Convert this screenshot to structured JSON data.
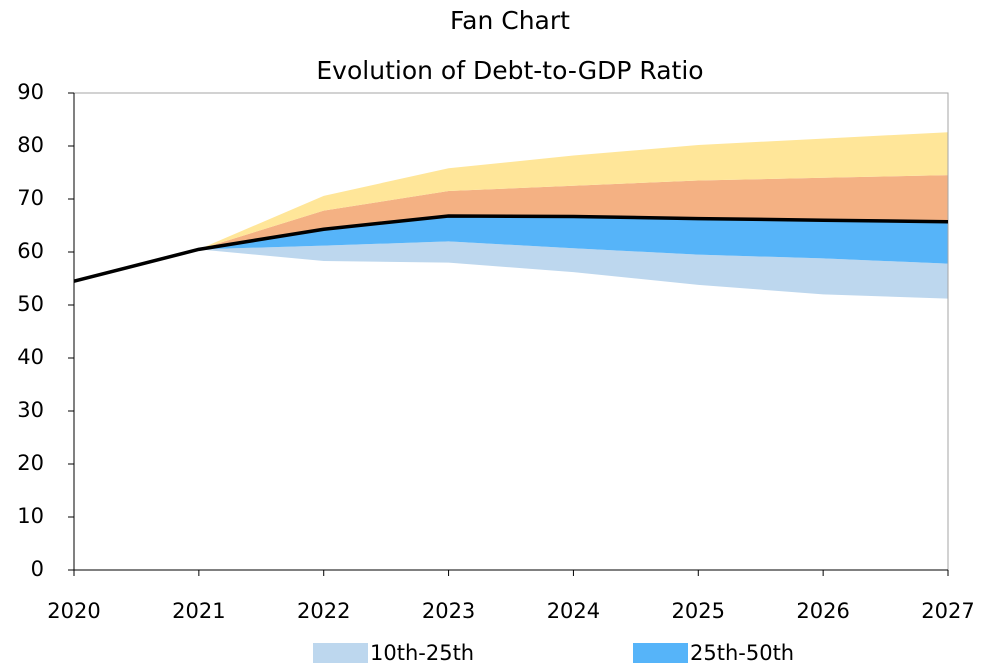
{
  "chart_data": {
    "type": "fan",
    "title": "Fan Chart",
    "subtitle": "Evolution of Debt-to-GDP Ratio",
    "x": [
      2020,
      2021,
      2022,
      2023,
      2024,
      2025,
      2026,
      2027
    ],
    "xlim": [
      2020,
      2027
    ],
    "xticks": [
      2020,
      2021,
      2022,
      2023,
      2024,
      2025,
      2026,
      2027
    ],
    "ylim": [
      0,
      90
    ],
    "yticks": [
      0,
      10,
      20,
      30,
      40,
      50,
      60,
      70,
      80,
      90
    ],
    "percentiles": {
      "p10": [
        null,
        60.5,
        58.3,
        58.0,
        56.2,
        53.8,
        52.0,
        51.2
      ],
      "p25": [
        null,
        60.5,
        61.2,
        62.0,
        60.7,
        59.5,
        58.8,
        57.8
      ],
      "p50": [
        null,
        60.5,
        64.3,
        66.8,
        66.7,
        66.3,
        66.0,
        65.7
      ],
      "p75": [
        null,
        60.5,
        67.8,
        71.5,
        72.5,
        73.5,
        74.0,
        74.5
      ],
      "p90": [
        null,
        60.5,
        70.6,
        75.8,
        78.2,
        80.2,
        81.4,
        82.6
      ]
    },
    "bands": [
      {
        "name": "10th-25th",
        "color": "#bdd7ee",
        "lower": "p10",
        "upper": "p25"
      },
      {
        "name": "25th-50th",
        "color": "#56b4f9",
        "lower": "p25",
        "upper": "p50"
      },
      {
        "color": "#f4b183",
        "lower": "p50",
        "upper": "p75"
      },
      {
        "color": "#ffe699",
        "lower": "p75",
        "upper": "p90"
      }
    ],
    "series": [
      {
        "color": "#000000",
        "values": [
          54.5,
          60.5,
          64.3,
          66.8,
          66.7,
          66.3,
          66.0,
          65.7
        ]
      }
    ]
  }
}
